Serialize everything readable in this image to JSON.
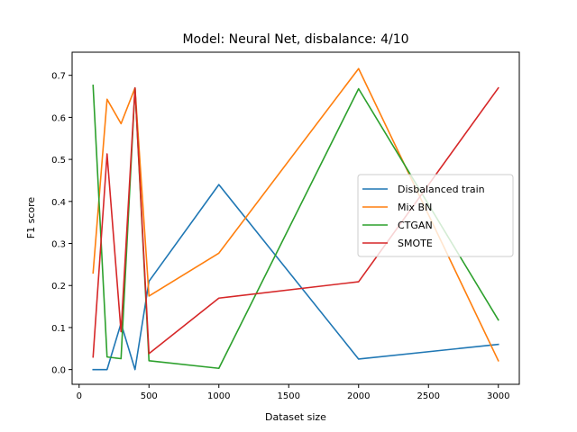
{
  "chart_data": {
    "type": "line",
    "title": "Model: Neural Net, disbalance: 4/10",
    "xlabel": "Dataset size",
    "ylabel": "F1 score",
    "xlim": [
      -50,
      3150
    ],
    "ylim": [
      -0.035,
      0.755
    ],
    "xticks": [
      0,
      500,
      1000,
      1500,
      2000,
      2500,
      3000
    ],
    "yticks": [
      0.0,
      0.1,
      0.2,
      0.3,
      0.4,
      0.5,
      0.6,
      0.7
    ],
    "x": [
      100,
      200,
      300,
      400,
      500,
      1000,
      2000,
      3000
    ],
    "legend_position": "center-right",
    "grid": false,
    "series": [
      {
        "name": "Disbalanced train",
        "color": "#1f77b4",
        "values": [
          0.0,
          0.0,
          0.11,
          0.0,
          0.21,
          0.44,
          0.025,
          0.06
        ]
      },
      {
        "name": "Mix BN",
        "color": "#ff7f0e",
        "values": [
          0.23,
          0.643,
          0.585,
          0.67,
          0.175,
          0.277,
          0.716,
          0.021
        ]
      },
      {
        "name": "CTGAN",
        "color": "#2ca02c",
        "values": [
          0.676,
          0.03,
          0.026,
          0.67,
          0.021,
          0.003,
          0.668,
          0.118
        ]
      },
      {
        "name": "SMOTE",
        "color": "#d62728",
        "values": [
          0.03,
          0.513,
          0.09,
          0.67,
          0.038,
          0.17,
          0.209,
          0.67
        ]
      }
    ]
  }
}
